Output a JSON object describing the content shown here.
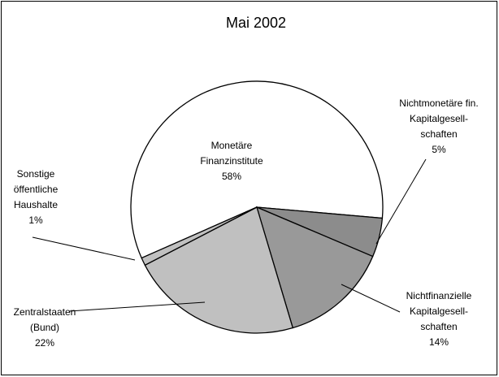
{
  "chart_data": {
    "type": "pie",
    "title": "Mai 2002",
    "categories": [
      [
        "Monetäre",
        "Finanzinstitute"
      ],
      [
        "Nichtmonetäre fin.",
        "Kapitalgesell-",
        "schaften"
      ],
      [
        "Nichtfinanzielle",
        "Kapitalgesell-",
        "schaften"
      ],
      [
        "Zentralstaaten",
        "(Bund)"
      ],
      [
        "Sonstige",
        "öffentliche",
        "Haushalte"
      ]
    ],
    "values": [
      58,
      5,
      14,
      22,
      1
    ],
    "value_labels": [
      "58%",
      "5%",
      "14%",
      "22%",
      "1%"
    ],
    "colors": [
      "#ffffff",
      "#8c8c8c",
      "#999999",
      "#c0c0c0",
      "#c0c0c0"
    ]
  }
}
